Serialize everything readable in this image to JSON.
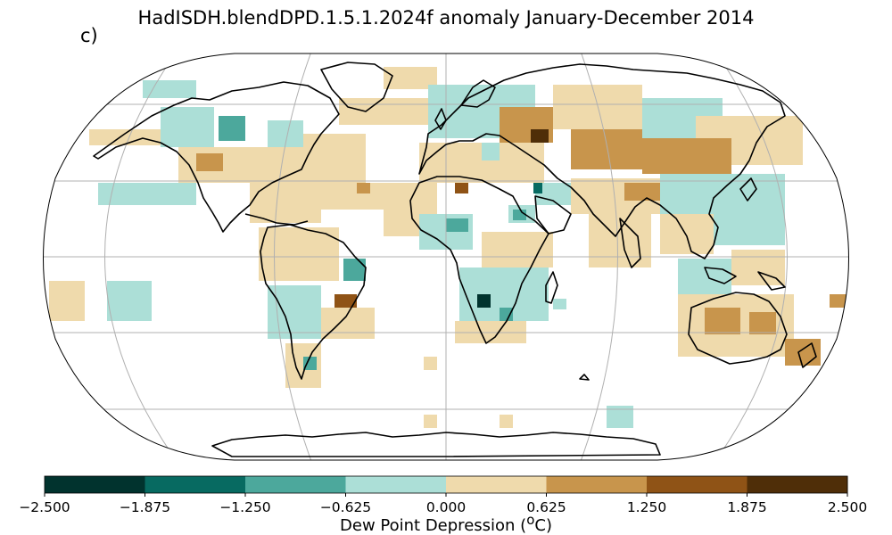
{
  "figure": {
    "title": "HadISDH.blendDPD.1.5.1.2024f anomaly January-December 2014",
    "panel_label": "c)"
  },
  "map": {
    "projection": "Robinson",
    "graticule": "30 degree grid",
    "land_outline_color": "#000000",
    "grid_color": "#b0b0b0"
  },
  "colorbar": {
    "title": "Dew Point Depression (",
    "title_super": "o",
    "title_end": "C)",
    "tick_labels": [
      "−2.500",
      "−1.875",
      "−1.250",
      "−0.625",
      "0.000",
      "0.625",
      "1.250",
      "1.875",
      "2.500"
    ],
    "colors": [
      "#01332e",
      "#076a61",
      "#4ca89c",
      "#acdfd7",
      "#efdaac",
      "#c8954c",
      "#8f5316",
      "#4f2e08"
    ]
  },
  "chart_data": {
    "type": "heatmap",
    "title": "HadISDH.blendDPD.1.5.1.2024f anomaly January-December 2014",
    "colorbar_label": "Dew Point Depression (oC)",
    "vmin": -2.5,
    "vmax": 2.5,
    "levels": [
      -2.5,
      -1.875,
      -1.25,
      -0.625,
      0.0,
      0.625,
      1.25,
      1.875,
      2.5
    ]
  }
}
